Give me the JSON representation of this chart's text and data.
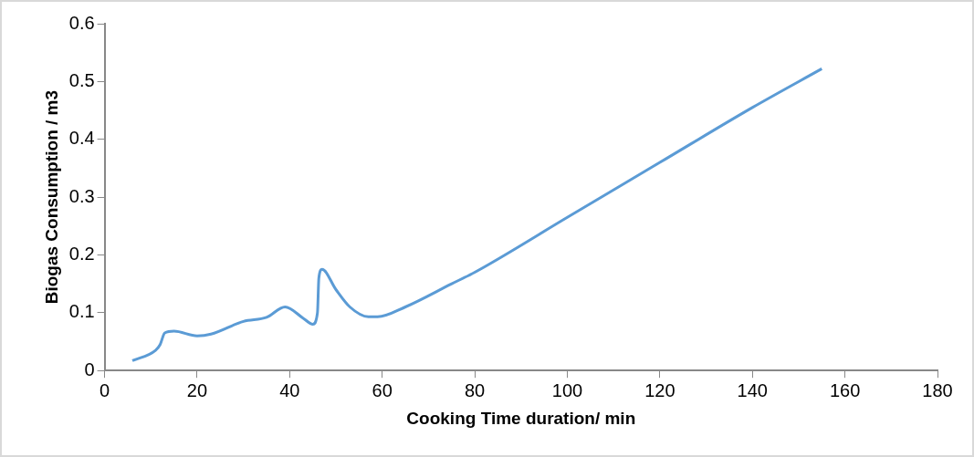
{
  "chart_data": {
    "type": "line",
    "xlabel": "Cooking Time duration/ min",
    "ylabel": "Biogas Consumption / m3",
    "x": [
      6,
      11,
      12,
      13,
      15,
      20,
      23,
      30,
      35,
      39,
      43,
      45,
      46,
      46.3,
      47,
      50,
      53,
      57,
      59,
      65,
      75,
      80,
      100,
      120,
      140,
      155
    ],
    "series": [
      {
        "color": "#5b9bd5",
        "values": [
          0.017,
          0.035,
          0.045,
          0.065,
          0.068,
          0.06,
          0.063,
          0.085,
          0.092,
          0.11,
          0.09,
          0.08,
          0.1,
          0.16,
          0.175,
          0.14,
          0.11,
          0.093,
          0.093,
          0.11,
          0.15,
          0.17,
          0.265,
          0.36,
          0.455,
          0.522
        ]
      }
    ],
    "xlim": [
      0,
      180
    ],
    "xticks": [
      0,
      20,
      40,
      60,
      80,
      100,
      120,
      140,
      160,
      180
    ],
    "ylim": [
      0,
      0.6
    ],
    "yticks": [
      0,
      0.1,
      0.2,
      0.3,
      0.4,
      0.5,
      0.6
    ],
    "grid": false,
    "legend": false,
    "marker": "none",
    "line_style": "solid"
  }
}
